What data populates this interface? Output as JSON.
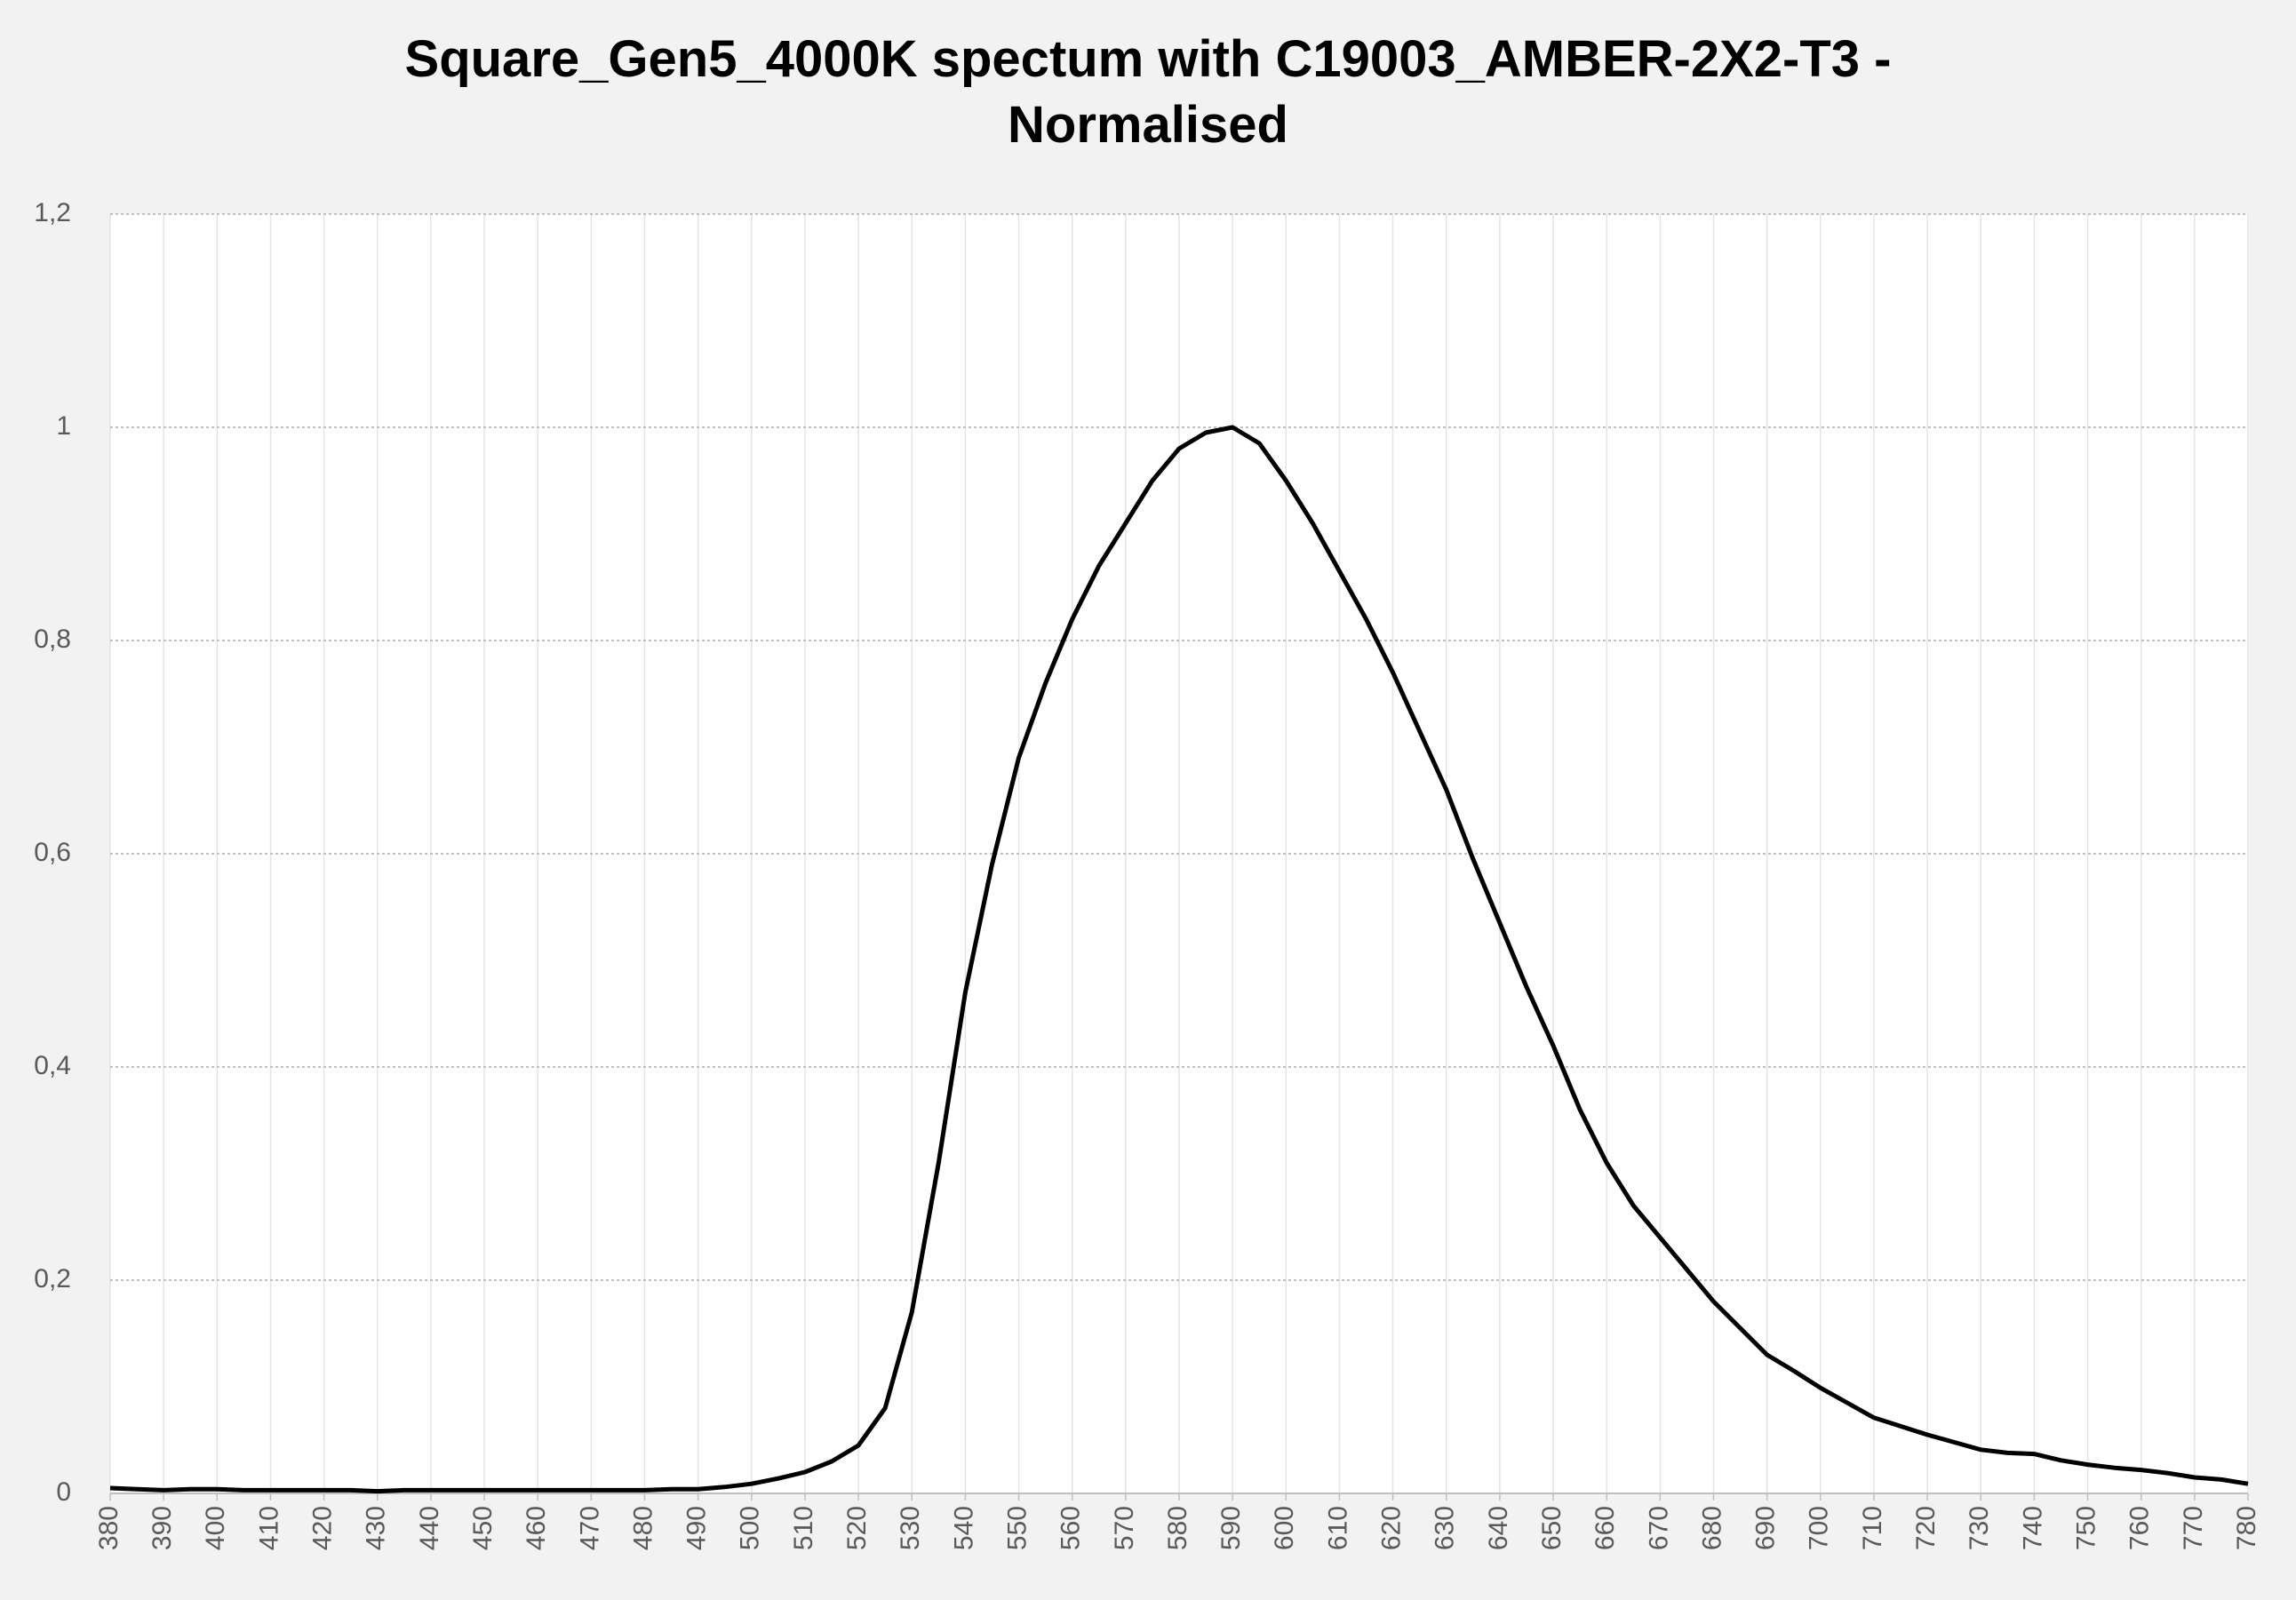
{
  "chart_data": {
    "type": "line",
    "title": "Square_Gen5_4000K spectum with C19003_AMBER-2X2-T3 - Normalised",
    "x": [
      380,
      385,
      390,
      395,
      400,
      405,
      410,
      415,
      420,
      425,
      430,
      435,
      440,
      445,
      450,
      455,
      460,
      465,
      470,
      475,
      480,
      485,
      490,
      495,
      500,
      505,
      510,
      515,
      520,
      525,
      530,
      535,
      540,
      545,
      550,
      555,
      560,
      565,
      570,
      575,
      580,
      585,
      590,
      595,
      600,
      605,
      610,
      615,
      620,
      625,
      630,
      635,
      640,
      645,
      650,
      655,
      660,
      665,
      670,
      675,
      680,
      685,
      690,
      695,
      700,
      705,
      710,
      715,
      720,
      725,
      730,
      735,
      740,
      745,
      750,
      755,
      760,
      765,
      770,
      775,
      780
    ],
    "series": [
      {
        "name": "Square_Gen5_4000K spectum with C19003_AMBER-2X2-T3",
        "color": "#000000",
        "values": [
          0.005,
          0.004,
          0.003,
          0.004,
          0.004,
          0.003,
          0.003,
          0.003,
          0.003,
          0.003,
          0.002,
          0.003,
          0.003,
          0.003,
          0.003,
          0.003,
          0.003,
          0.003,
          0.003,
          0.003,
          0.003,
          0.004,
          0.004,
          0.006,
          0.009,
          0.014,
          0.02,
          0.03,
          0.045,
          0.08,
          0.17,
          0.31,
          0.47,
          0.59,
          0.69,
          0.76,
          0.82,
          0.87,
          0.91,
          0.95,
          0.98,
          0.995,
          1.0,
          0.985,
          0.95,
          0.91,
          0.865,
          0.82,
          0.77,
          0.715,
          0.66,
          0.595,
          0.535,
          0.475,
          0.42,
          0.36,
          0.31,
          0.27,
          0.24,
          0.21,
          0.18,
          0.155,
          0.13,
          0.115,
          0.099,
          0.085,
          0.071,
          0.063,
          0.055,
          0.048,
          0.041,
          0.038,
          0.037,
          0.031,
          0.027,
          0.024,
          0.022,
          0.019,
          0.015,
          0.013,
          0.009
        ]
      }
    ],
    "xlim": [
      380,
      780
    ],
    "xticks": [
      380,
      390,
      400,
      410,
      420,
      430,
      440,
      450,
      460,
      470,
      480,
      490,
      500,
      510,
      520,
      530,
      540,
      550,
      560,
      570,
      580,
      590,
      600,
      610,
      620,
      630,
      640,
      650,
      660,
      670,
      680,
      690,
      700,
      710,
      720,
      730,
      740,
      750,
      760,
      770,
      780
    ],
    "ylim": [
      0,
      1.2
    ],
    "yticks": [
      0,
      {
        "value": 0.2,
        "label": "0,2"
      },
      {
        "value": 0.4,
        "label": "0,4"
      },
      {
        "value": 0.6,
        "label": "0,6"
      },
      {
        "value": 0.8,
        "label": "0,8"
      },
      1,
      {
        "value": 1.2,
        "label": "1,2"
      }
    ],
    "grid": true
  }
}
